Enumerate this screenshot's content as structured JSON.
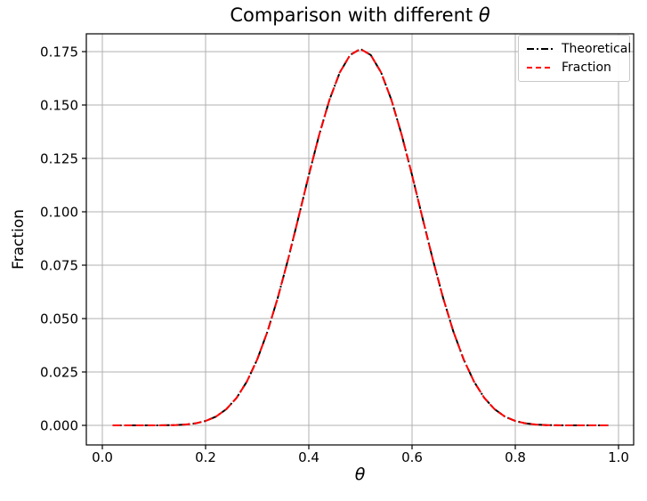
{
  "figure": {
    "title_prefix": "Comparison with different ",
    "title_math": "θ",
    "title_full": "Comparison with different θ",
    "xlabel": "θ",
    "ylabel": "Fraction",
    "background": "#ffffff",
    "grid_color": "#b0b0b0",
    "spine_color": "#000000"
  },
  "legend": {
    "position": "upper right",
    "entries": [
      {
        "label": "Theoretical",
        "color": "#000000",
        "linestyle": "dashdot"
      },
      {
        "label": "Fraction",
        "color": "#ff0000",
        "linestyle": "dashed"
      }
    ]
  },
  "chart_data": {
    "type": "line",
    "title": "Comparison with different θ",
    "xlabel": "θ",
    "ylabel": "Fraction",
    "grid": true,
    "legend_position": "upper right",
    "xlim": [
      -0.031,
      1.029
    ],
    "ylim": [
      -0.0092,
      0.1833
    ],
    "xticks": [
      0.0,
      0.2,
      0.4,
      0.6,
      0.8,
      1.0
    ],
    "xtick_labels": [
      "0.0",
      "0.2",
      "0.4",
      "0.6",
      "0.8",
      "1.0"
    ],
    "yticks": [
      0.0,
      0.025,
      0.05,
      0.075,
      0.1,
      0.125,
      0.15,
      0.175
    ],
    "ytick_labels": [
      "0.000",
      "0.025",
      "0.050",
      "0.075",
      "0.100",
      "0.125",
      "0.150",
      "0.175"
    ],
    "peak": {
      "x": 0.5,
      "y": 0.176197
    },
    "x": [
      0.02,
      0.04,
      0.06,
      0.08,
      0.1,
      0.12,
      0.14,
      0.16,
      0.18,
      0.2,
      0.22,
      0.24,
      0.26,
      0.28,
      0.3,
      0.32,
      0.34,
      0.36,
      0.38,
      0.4,
      0.42,
      0.44,
      0.46,
      0.48,
      0.5,
      0.52,
      0.54,
      0.56,
      0.58,
      0.6,
      0.62,
      0.64,
      0.66,
      0.68,
      0.7,
      0.72,
      0.74,
      0.76,
      0.78,
      0.8,
      0.82,
      0.84,
      0.86,
      0.88,
      0.9,
      0.92,
      0.94,
      0.96,
      0.98
    ],
    "series": [
      {
        "name": "Theoretical",
        "color": "#000000",
        "linestyle": "dashdot",
        "values": [
          0.0,
          0.0,
          0.0,
          1e-06,
          6e-06,
          3.2e-05,
          0.000118,
          0.000355,
          0.000907,
          0.002031,
          0.00409,
          0.007531,
          0.012849,
          0.020489,
          0.030817,
          0.043979,
          0.059828,
          0.077884,
          0.097358,
          0.117146,
          0.13595,
          0.152414,
          0.165249,
          0.173404,
          0.176197,
          0.173404,
          0.165249,
          0.152414,
          0.13595,
          0.117146,
          0.097358,
          0.077884,
          0.059828,
          0.043979,
          0.030817,
          0.020489,
          0.012849,
          0.007531,
          0.00409,
          0.002031,
          0.000907,
          0.000355,
          0.000118,
          3.2e-05,
          6e-06,
          1e-06,
          0.0,
          0.0,
          0.0
        ]
      },
      {
        "name": "Fraction",
        "color": "#ff0000",
        "linestyle": "dashed",
        "values": [
          0.0,
          0.0,
          0.0,
          1e-06,
          6e-06,
          3.2e-05,
          0.000118,
          0.000355,
          0.000907,
          0.002031,
          0.00409,
          0.007531,
          0.012849,
          0.020489,
          0.030817,
          0.043979,
          0.059828,
          0.077884,
          0.097358,
          0.117146,
          0.13595,
          0.152414,
          0.165249,
          0.173404,
          0.176197,
          0.173404,
          0.165249,
          0.152414,
          0.13595,
          0.117146,
          0.097358,
          0.077884,
          0.059828,
          0.043979,
          0.030817,
          0.020489,
          0.012849,
          0.007531,
          0.00409,
          0.002031,
          0.000907,
          0.000355,
          0.000118,
          3.2e-05,
          6e-06,
          1e-06,
          0.0,
          0.0,
          0.0
        ]
      }
    ]
  }
}
